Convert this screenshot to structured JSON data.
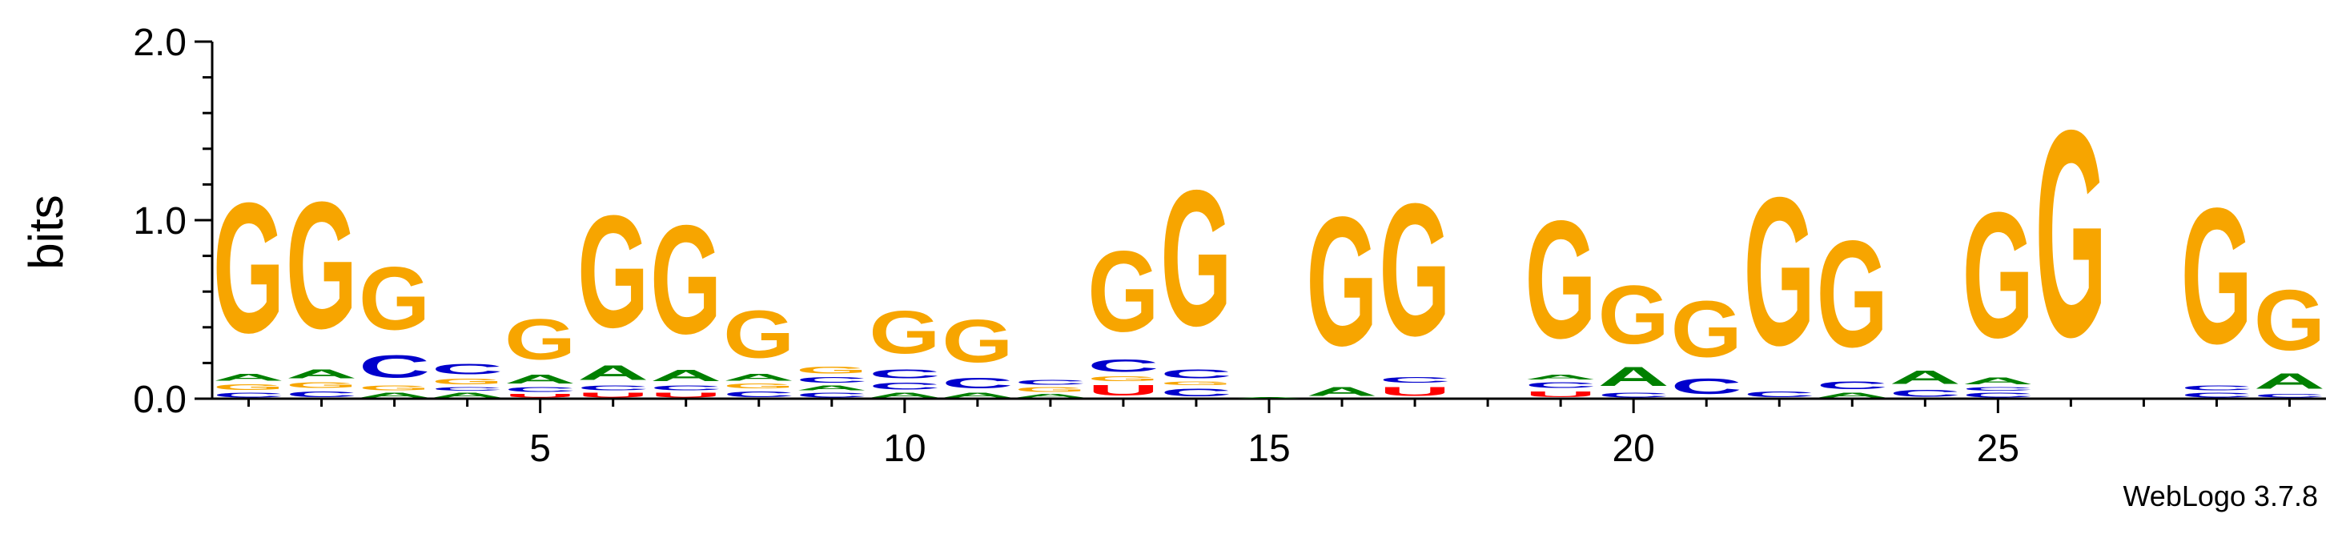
{
  "footer_text": "WebLogo 3.7.8",
  "colors": {
    "G": "#f7a500",
    "A": "#008000",
    "C": "#0000cc",
    "U": "#ff0000"
  },
  "chart_data": {
    "type": "sequence-logo",
    "ylabel": "bits",
    "ylim": [
      0,
      2.0
    ],
    "yticks": [
      "0.0",
      "1.0",
      "2.0"
    ],
    "x_tick_labels": [
      5,
      10,
      15,
      20,
      25
    ],
    "positions": [
      {
        "pos": 1,
        "letters": [
          [
            "C",
            0.04
          ],
          [
            "G",
            0.05
          ],
          [
            "A",
            0.06
          ],
          [
            "G",
            1.16
          ]
        ]
      },
      {
        "pos": 2,
        "letters": [
          [
            "C",
            0.05
          ],
          [
            "G",
            0.05
          ],
          [
            "A",
            0.08
          ],
          [
            "G",
            1.13
          ]
        ]
      },
      {
        "pos": 3,
        "letters": [
          [
            "A",
            0.04
          ],
          [
            "G",
            0.04
          ],
          [
            "C",
            0.2
          ],
          [
            "G",
            0.56
          ]
        ]
      },
      {
        "pos": 4,
        "letters": [
          [
            "A",
            0.04
          ],
          [
            "C",
            0.03
          ],
          [
            "G",
            0.05
          ],
          [
            "C",
            0.09
          ]
        ]
      },
      {
        "pos": 5,
        "letters": [
          [
            "U",
            0.03
          ],
          [
            "C",
            0.04
          ],
          [
            "A",
            0.08
          ],
          [
            "G",
            0.36
          ]
        ]
      },
      {
        "pos": 6,
        "letters": [
          [
            "U",
            0.04
          ],
          [
            "C",
            0.04
          ],
          [
            "A",
            0.13
          ],
          [
            "G",
            1.0
          ]
        ]
      },
      {
        "pos": 7,
        "letters": [
          [
            "U",
            0.04
          ],
          [
            "C",
            0.04
          ],
          [
            "A",
            0.1
          ],
          [
            "G",
            0.97
          ]
        ]
      },
      {
        "pos": 8,
        "letters": [
          [
            "C",
            0.05
          ],
          [
            "G",
            0.04
          ],
          [
            "A",
            0.06
          ],
          [
            "G",
            0.42
          ]
        ]
      },
      {
        "pos": 9,
        "letters": [
          [
            "C",
            0.04
          ],
          [
            "A",
            0.04
          ],
          [
            "C",
            0.05
          ],
          [
            "G",
            0.06
          ]
        ]
      },
      {
        "pos": 10,
        "letters": [
          [
            "A",
            0.04
          ],
          [
            "C",
            0.06
          ],
          [
            "C",
            0.08
          ],
          [
            "G",
            0.38
          ]
        ]
      },
      {
        "pos": 11,
        "letters": [
          [
            "A",
            0.04
          ],
          [
            "C",
            0.09
          ],
          [
            "G",
            0.38
          ]
        ]
      },
      {
        "pos": 12,
        "letters": [
          [
            "A",
            0.03
          ],
          [
            "G",
            0.04
          ],
          [
            "C",
            0.04
          ]
        ]
      },
      {
        "pos": 13,
        "letters": [
          [
            "U",
            0.09
          ],
          [
            "G",
            0.04
          ],
          [
            "C",
            0.11
          ],
          [
            "G",
            0.72
          ]
        ]
      },
      {
        "pos": 14,
        "letters": [
          [
            "C",
            0.07
          ],
          [
            "G",
            0.03
          ],
          [
            "C",
            0.08
          ],
          [
            "G",
            1.21
          ]
        ]
      },
      {
        "pos": 15,
        "letters": [
          [
            "A",
            0.01
          ]
        ]
      },
      {
        "pos": 16,
        "letters": [
          [
            "A",
            0.08
          ],
          [
            "G",
            1.15
          ]
        ]
      },
      {
        "pos": 17,
        "letters": [
          [
            "U",
            0.08
          ],
          [
            "C",
            0.05
          ],
          [
            "G",
            1.18
          ]
        ]
      },
      {
        "pos": 18,
        "letters": []
      },
      {
        "pos": 19,
        "letters": [
          [
            "U",
            0.05
          ],
          [
            "C",
            0.05
          ],
          [
            "A",
            0.04
          ],
          [
            "G",
            1.05
          ]
        ]
      },
      {
        "pos": 20,
        "letters": [
          [
            "C",
            0.04
          ],
          [
            "A",
            0.17
          ],
          [
            "G",
            0.52
          ]
        ]
      },
      {
        "pos": 21,
        "letters": [
          [
            "C",
            0.14
          ],
          [
            "G",
            0.5
          ]
        ]
      },
      {
        "pos": 22,
        "letters": [
          [
            "C",
            0.05
          ],
          [
            "G",
            1.32
          ]
        ]
      },
      {
        "pos": 23,
        "letters": [
          [
            "A",
            0.04
          ],
          [
            "C",
            0.07
          ],
          [
            "G",
            0.95
          ]
        ]
      },
      {
        "pos": 24,
        "letters": [
          [
            "C",
            0.06
          ],
          [
            "A",
            0.12
          ]
        ]
      },
      {
        "pos": 25,
        "letters": [
          [
            "C",
            0.04
          ],
          [
            "C",
            0.03
          ],
          [
            "A",
            0.06
          ],
          [
            "G",
            1.12
          ]
        ]
      },
      {
        "pos": 26,
        "letters": [
          [
            "G",
            1.84
          ]
        ]
      },
      {
        "pos": 27,
        "letters": []
      },
      {
        "pos": 28,
        "letters": [
          [
            "C",
            0.04
          ],
          [
            "C",
            0.04
          ],
          [
            "G",
            1.21
          ]
        ]
      },
      {
        "pos": 29,
        "letters": [
          [
            "C",
            0.03
          ],
          [
            "A",
            0.14
          ],
          [
            "G",
            0.54
          ]
        ]
      }
    ]
  }
}
